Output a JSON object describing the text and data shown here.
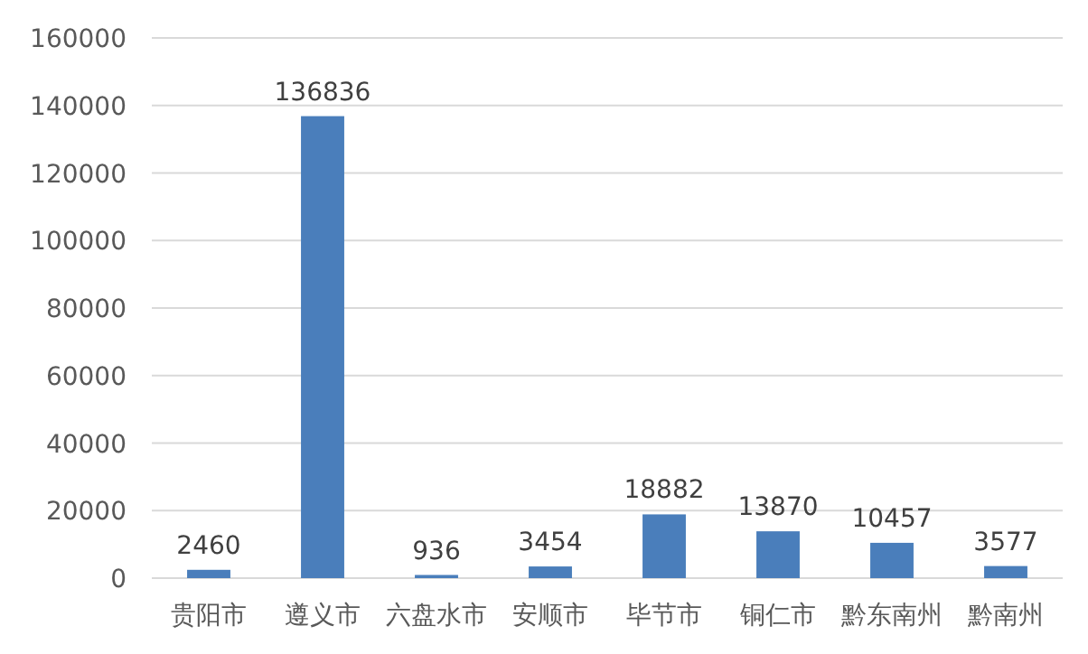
{
  "chart_data": {
    "type": "bar",
    "categories": [
      "贵阳市",
      "遵义市",
      "六盘水市",
      "安顺市",
      "毕节市",
      "铜仁市",
      "黔东南州",
      "黔南州"
    ],
    "values": [
      2460,
      136836,
      936,
      3454,
      18882,
      13870,
      10457,
      3577
    ],
    "color": "#4a7ebb",
    "ylim": [
      0,
      160000
    ],
    "yticks": [
      0,
      20000,
      40000,
      60000,
      80000,
      100000,
      120000,
      140000,
      160000
    ],
    "grid": "y",
    "data_labels": true
  }
}
